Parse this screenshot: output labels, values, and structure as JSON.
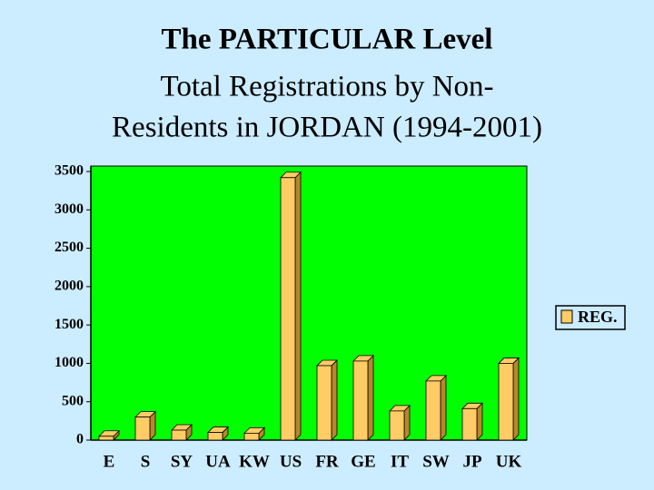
{
  "chart_data": {
    "type": "bar3d",
    "title": "The PARTICULAR Level",
    "subtitle": [
      "Total Registrations by Non-",
      "Residents in JORDAN (1994-2001)"
    ],
    "categories": [
      "E",
      "S",
      "SY",
      "UA",
      "KW",
      "US",
      "FR",
      "GE",
      "IT",
      "SW",
      "JP",
      "UK"
    ],
    "series": [
      {
        "name": "REG.",
        "color": "#ffcc66",
        "values": [
          50,
          300,
          130,
          100,
          90,
          3420,
          970,
          1030,
          380,
          770,
          410,
          1000
        ]
      }
    ],
    "ylim": [
      0,
      3500
    ],
    "yticks": [
      0,
      500,
      1000,
      1500,
      2000,
      2500,
      3000,
      3500
    ],
    "grid": false,
    "plot_color": "#00ff00",
    "legend": "right"
  }
}
